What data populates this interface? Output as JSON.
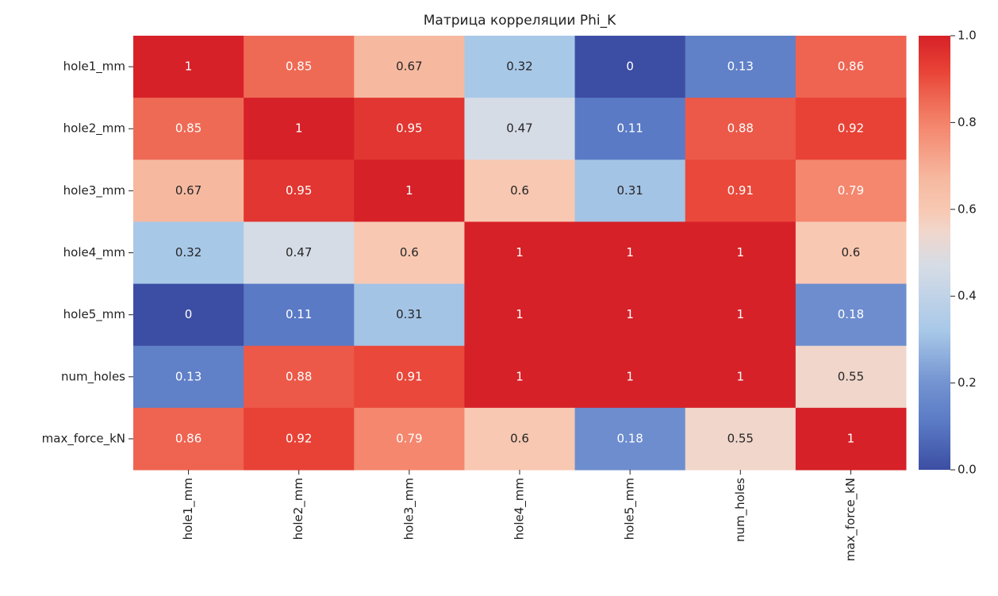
{
  "chart_data": {
    "type": "heatmap",
    "title": "Матрица корреляции Phi_K",
    "x_categories": [
      "hole1_mm",
      "hole2_mm",
      "hole3_mm",
      "hole4_mm",
      "hole5_mm",
      "num_holes",
      "max_force_kN"
    ],
    "y_categories": [
      "hole1_mm",
      "hole2_mm",
      "hole3_mm",
      "hole4_mm",
      "hole5_mm",
      "num_holes",
      "max_force_kN"
    ],
    "values": [
      [
        1,
        0.85,
        0.67,
        0.32,
        0,
        0.13,
        0.86
      ],
      [
        0.85,
        1,
        0.95,
        0.47,
        0.11,
        0.88,
        0.92
      ],
      [
        0.67,
        0.95,
        1,
        0.6,
        0.31,
        0.91,
        0.79
      ],
      [
        0.32,
        0.47,
        0.6,
        1,
        1,
        1,
        0.6
      ],
      [
        0,
        0.11,
        0.31,
        1,
        1,
        1,
        0.18
      ],
      [
        0.13,
        0.88,
        0.91,
        1,
        1,
        1,
        0.55
      ],
      [
        0.86,
        0.92,
        0.79,
        0.6,
        0.18,
        0.55,
        1
      ]
    ],
    "colormap": "coolwarm",
    "clim": [
      0,
      1
    ],
    "cticks": [
      {
        "value": 0,
        "label": "0.0"
      },
      0.2,
      0.4,
      0.6,
      0.8,
      {
        "value": 1,
        "label": "1.0"
      }
    ]
  }
}
